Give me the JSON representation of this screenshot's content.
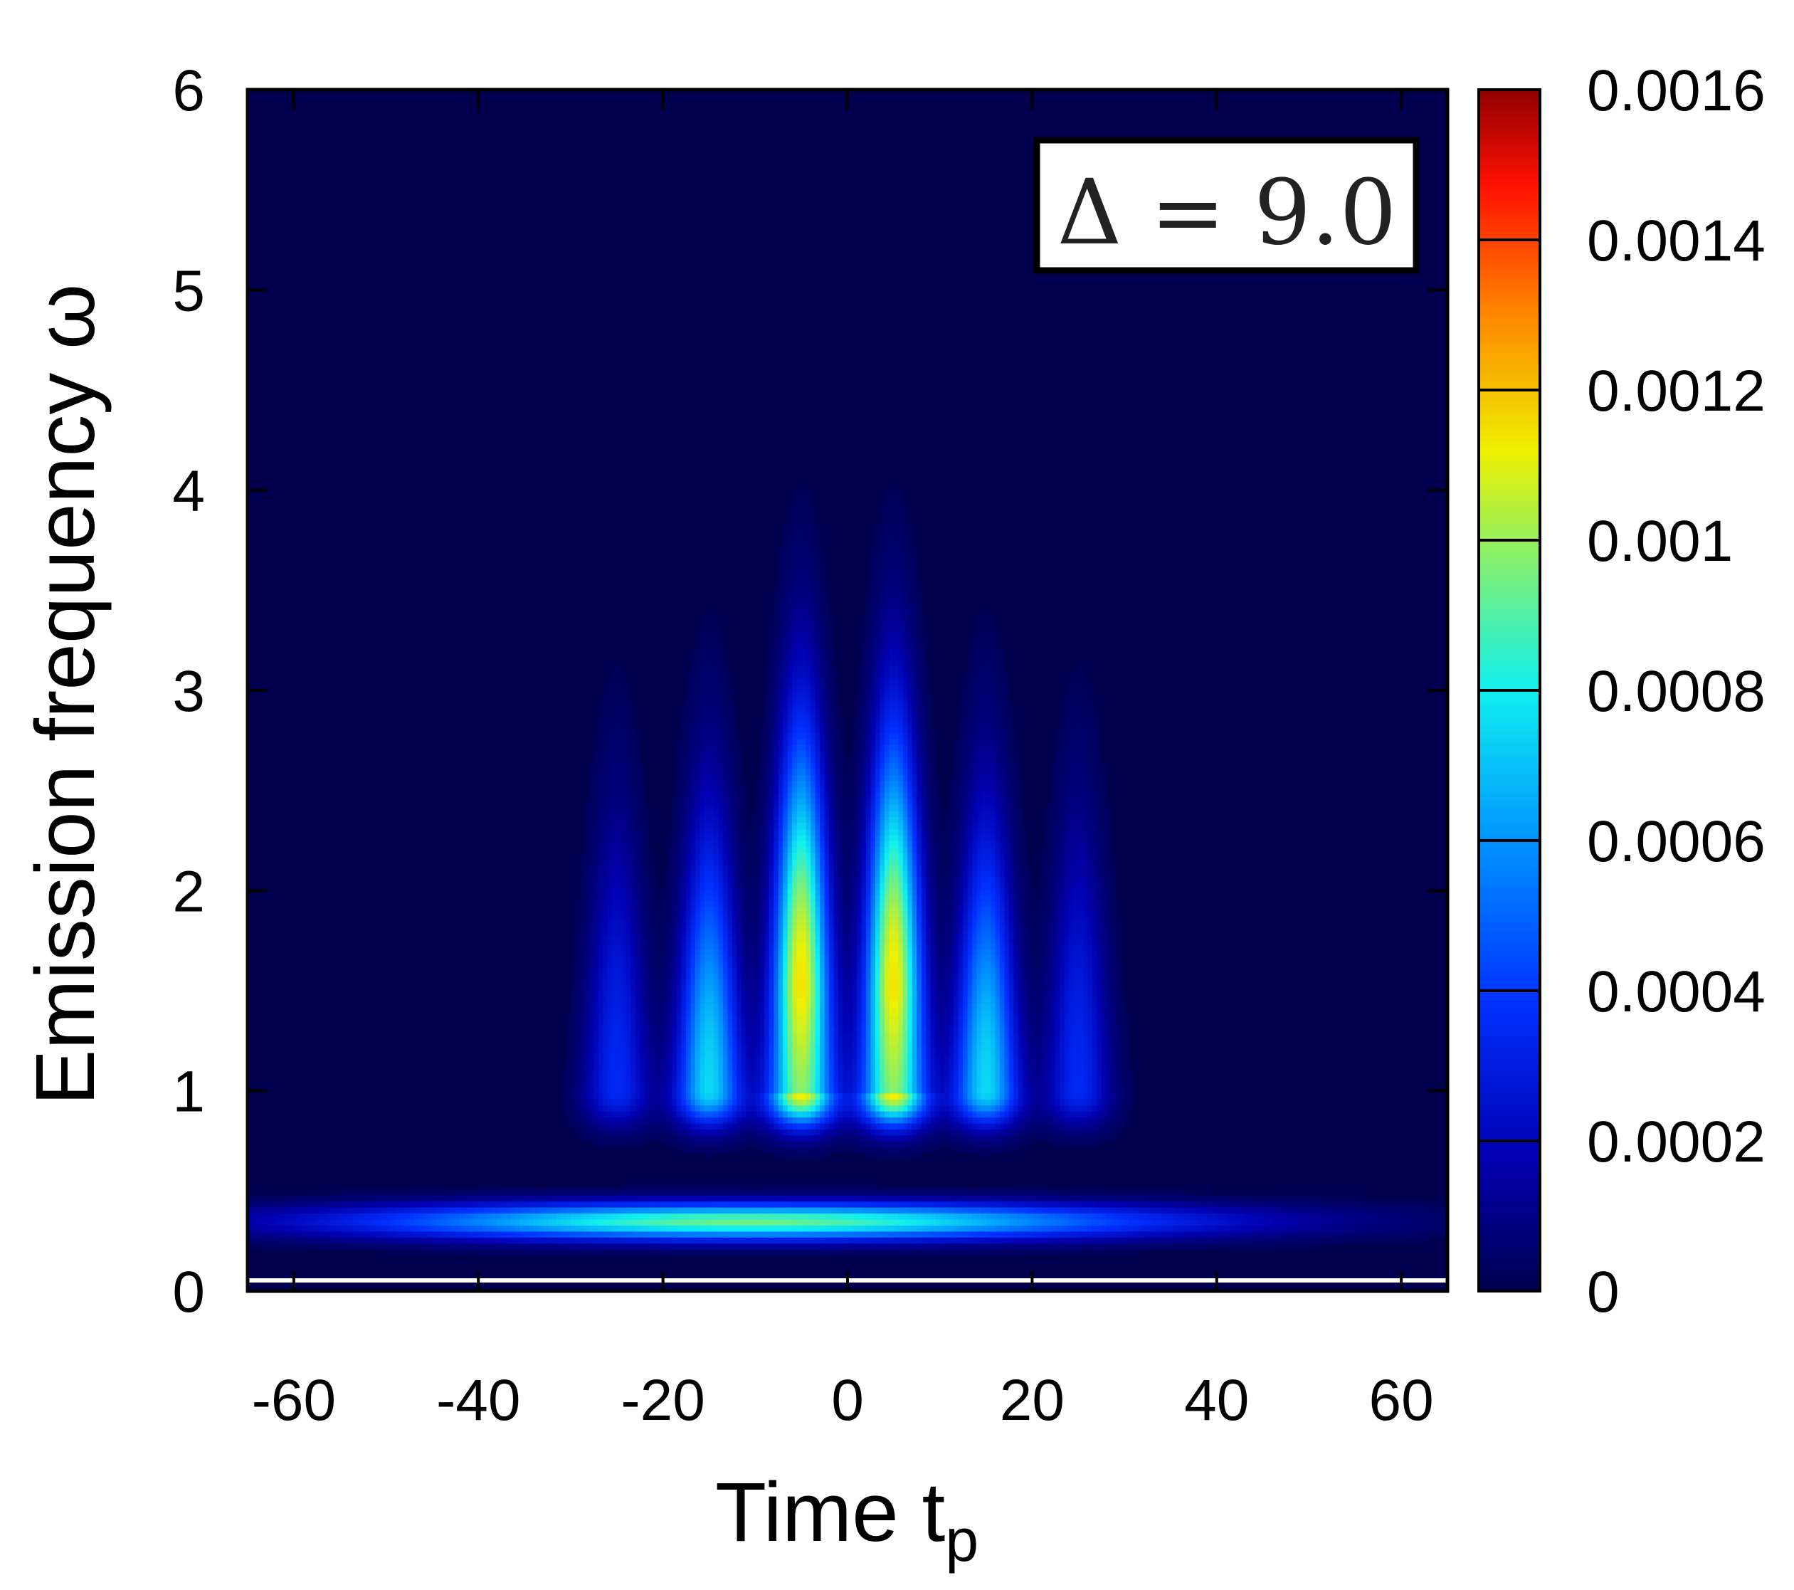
{
  "chart_data": {
    "type": "heatmap",
    "title": "",
    "xlabel": "Time t",
    "xlabel_subscript": "p",
    "ylabel": "Emission frequency ω",
    "xlim": [
      -65,
      65
    ],
    "ylim": [
      0,
      6
    ],
    "x_ticks": [
      -60,
      -40,
      -20,
      0,
      20,
      40,
      60
    ],
    "x_tick_labels": [
      "-60",
      "-40",
      "-20",
      "0",
      "20",
      "40",
      "60"
    ],
    "y_ticks": [
      0,
      1,
      2,
      3,
      4,
      5,
      6
    ],
    "y_tick_labels": [
      "0",
      "1",
      "2",
      "3",
      "4",
      "5",
      "6"
    ],
    "annotation": "Δ = 9.0",
    "colorbar": {
      "min": 0,
      "max": 0.0016,
      "ticks": [
        0,
        0.0002,
        0.0004,
        0.0006,
        0.0008,
        0.001,
        0.0012,
        0.0014,
        0.0016
      ],
      "tick_labels": [
        "0",
        "0.0002",
        "0.0004",
        "0.0006",
        "0.0008",
        "0.001",
        "0.0012",
        "0.0014",
        "0.0016"
      ],
      "colormap": "jet"
    },
    "features": {
      "low_band": {
        "omega": 0.35,
        "t_range": [
          -50,
          50
        ],
        "peak_value": 0.00095,
        "peak_t": -20
      },
      "streaks": [
        {
          "t": -25,
          "peak_value": 0.00035,
          "peak_omega": 1.0
        },
        {
          "t": -15,
          "peak_value": 0.00075,
          "peak_omega": 1.0
        },
        {
          "t": -5,
          "peak_value": 0.00115,
          "peak_omega": 1.5
        },
        {
          "t": 5,
          "peak_value": 0.00115,
          "peak_omega": 1.5
        },
        {
          "t": 15,
          "peak_value": 0.00075,
          "peak_omega": 1.0
        },
        {
          "t": 25,
          "peak_value": 0.00035,
          "peak_omega": 1.0
        }
      ]
    }
  }
}
